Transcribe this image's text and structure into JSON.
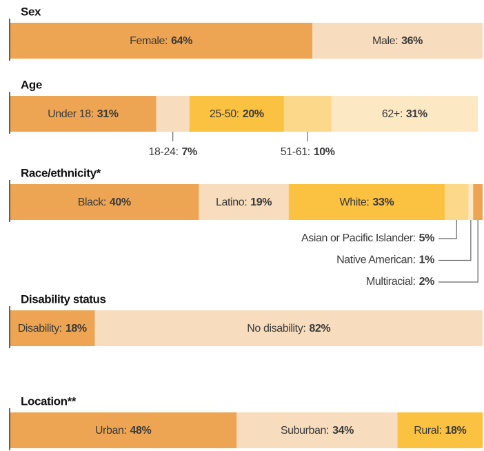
{
  "chart_data": [
    {
      "type": "bar",
      "stacked": true,
      "orientation": "horizontal",
      "title": "Sex",
      "xlim": [
        0,
        100
      ],
      "categories": [
        "Female:",
        "Male:"
      ],
      "values": [
        64,
        36
      ],
      "value_labels": [
        "64%",
        "36%"
      ],
      "colors": [
        "#eda553",
        "#f7dcbd"
      ]
    },
    {
      "type": "bar",
      "stacked": true,
      "orientation": "horizontal",
      "title": "Age",
      "xlim": [
        0,
        100
      ],
      "categories": [
        "Under 18:",
        "18-24:",
        "25-50:",
        "51-61:",
        "62+:"
      ],
      "values": [
        31,
        7,
        20,
        10,
        31
      ],
      "value_labels": [
        "31%",
        "7%",
        "20%",
        "10%",
        "31%"
      ],
      "colors": [
        "#eda553",
        "#f7dcbd",
        "#fbc140",
        "#fcd88a",
        "#fde8c4"
      ]
    },
    {
      "type": "bar",
      "stacked": true,
      "orientation": "horizontal",
      "title": "Race/ethnicity*",
      "xlim": [
        0,
        100
      ],
      "categories": [
        "Black:",
        "Latino:",
        "White:",
        "Asian or Pacific Islander:",
        "Native American:",
        "Multiracial:"
      ],
      "values": [
        40,
        19,
        33,
        5,
        1,
        2
      ],
      "value_labels": [
        "40%",
        "19%",
        "33%",
        "5%",
        "1%",
        "2%"
      ],
      "colors": [
        "#eda553",
        "#f7dcbd",
        "#fbc140",
        "#fcd88a",
        "#fde8c4",
        "#eda553"
      ]
    },
    {
      "type": "bar",
      "stacked": true,
      "orientation": "horizontal",
      "title": "Disability status",
      "xlim": [
        0,
        100
      ],
      "categories": [
        "Disability:",
        "No disability:"
      ],
      "values": [
        18,
        82
      ],
      "value_labels": [
        "18%",
        "82%"
      ],
      "colors": [
        "#eda553",
        "#f7dcbd"
      ]
    },
    {
      "type": "bar",
      "stacked": true,
      "orientation": "horizontal",
      "title": "Location**",
      "xlim": [
        0,
        100
      ],
      "categories": [
        "Urban:",
        "Suburban:",
        "Rural:"
      ],
      "values": [
        48,
        34,
        18
      ],
      "value_labels": [
        "48%",
        "34%",
        "18%"
      ],
      "colors": [
        "#eda553",
        "#f7dcbd",
        "#fbc140"
      ]
    }
  ]
}
